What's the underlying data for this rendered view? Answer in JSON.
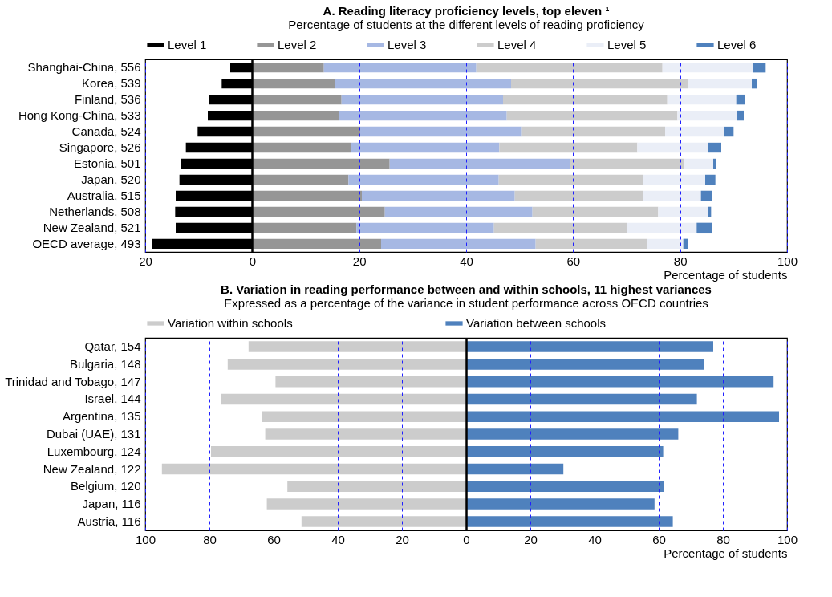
{
  "chart_data": [
    {
      "type": "bar",
      "orientation": "horizontal",
      "stacked": true,
      "title": "A. Reading literacy proficiency levels, top eleven ¹",
      "subtitle": "Percentage of students at the different levels of reading proficiency",
      "xlabel": "Percentage of students",
      "categories": [
        "Shanghai-China, 556",
        "Korea, 539",
        "Finland, 536",
        "Hong Kong-China, 533",
        "Canada, 524",
        "Singapore, 526",
        "Estonia, 501",
        "Japan, 520",
        "Australia, 515",
        "Netherlands, 508",
        "New Zealand, 521",
        "OECD average, 493"
      ],
      "series": [
        {
          "name": "Level 1",
          "color": "#000000",
          "values": [
            -4.1,
            -5.7,
            -8.0,
            -8.3,
            -10.2,
            -12.4,
            -13.3,
            -13.6,
            -14.3,
            -14.4,
            -14.3,
            -18.8
          ]
        },
        {
          "name": "Level 2",
          "color": "#969696",
          "values": [
            13.4,
            15.4,
            16.7,
            16.2,
            20.2,
            18.5,
            25.7,
            18.0,
            20.5,
            24.8,
            19.5,
            24.1
          ]
        },
        {
          "name": "Level 3",
          "color": "#a6b8e3",
          "values": [
            28.5,
            33.0,
            30.2,
            31.4,
            30.1,
            27.7,
            33.8,
            28.1,
            28.6,
            27.6,
            25.7,
            28.9
          ]
        },
        {
          "name": "Level 4",
          "color": "#cccccc",
          "values": [
            34.8,
            33.0,
            30.7,
            31.9,
            26.9,
            25.8,
            21.3,
            27.0,
            24.0,
            23.5,
            24.9,
            20.8
          ]
        },
        {
          "name": "Level 5",
          "color": "#eaeef7",
          "values": [
            17.0,
            12.0,
            12.9,
            11.2,
            11.1,
            13.2,
            5.4,
            11.6,
            10.8,
            9.3,
            13.0,
            6.8
          ]
        },
        {
          "name": "Level 6",
          "color": "#4f81bd",
          "values": [
            2.3,
            1.0,
            1.6,
            1.2,
            1.7,
            2.5,
            0.6,
            1.9,
            2.0,
            0.6,
            2.8,
            0.8
          ]
        }
      ],
      "xlim": [
        -20,
        100
      ],
      "xticks": [
        {
          "value": -20,
          "label": "20"
        },
        0,
        20,
        40,
        60,
        80,
        100
      ],
      "grid": "x",
      "legend": "top"
    },
    {
      "type": "bar",
      "orientation": "horizontal",
      "stacked": true,
      "title": "B. Variation in reading performance between and within schools, 11 highest variances",
      "subtitle": "Expressed as a percentage of the variance in student performance across OECD countries",
      "xlabel": "Percentage of students",
      "categories": [
        "Qatar, 154",
        "Bulgaria, 148",
        "Trinidad and Tobago, 147",
        "Israel, 144",
        "Argentina, 135",
        "Dubai (UAE), 131",
        "Luxembourg, 124",
        "New Zealand, 122",
        "Belgium, 120",
        "Japan, 116",
        "Austria, 116"
      ],
      "series": [
        {
          "name": "Variation within schools",
          "color": "#cccccc",
          "values": [
            -67.8,
            -74.3,
            -59.4,
            -76.4,
            -63.6,
            -62.6,
            -79.5,
            -94.8,
            -55.7,
            -62.1,
            -51.3
          ]
        },
        {
          "name": "Variation between schools",
          "color": "#4f81bd",
          "values": [
            77.0,
            74.0,
            95.8,
            71.9,
            97.5,
            66.1,
            61.4,
            30.3,
            61.7,
            58.7,
            64.4
          ]
        }
      ],
      "xlim": [
        -100,
        100
      ],
      "xticks": [
        {
          "value": -100,
          "label": "100"
        },
        {
          "value": -80,
          "label": "80"
        },
        {
          "value": -60,
          "label": "60"
        },
        {
          "value": -40,
          "label": "40"
        },
        {
          "value": -20,
          "label": "20"
        },
        0,
        20,
        40,
        60,
        80,
        100
      ],
      "grid": "x",
      "legend": "top"
    }
  ]
}
